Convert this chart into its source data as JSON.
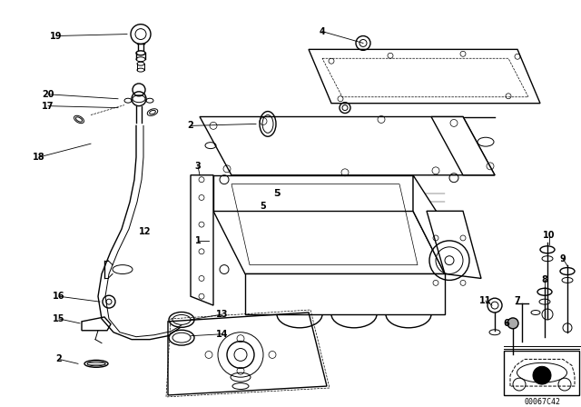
{
  "background_color": "#ffffff",
  "diagram_color": "#000000",
  "watermark": "00067C42",
  "figsize": [
    6.4,
    4.48
  ],
  "dpi": 100
}
